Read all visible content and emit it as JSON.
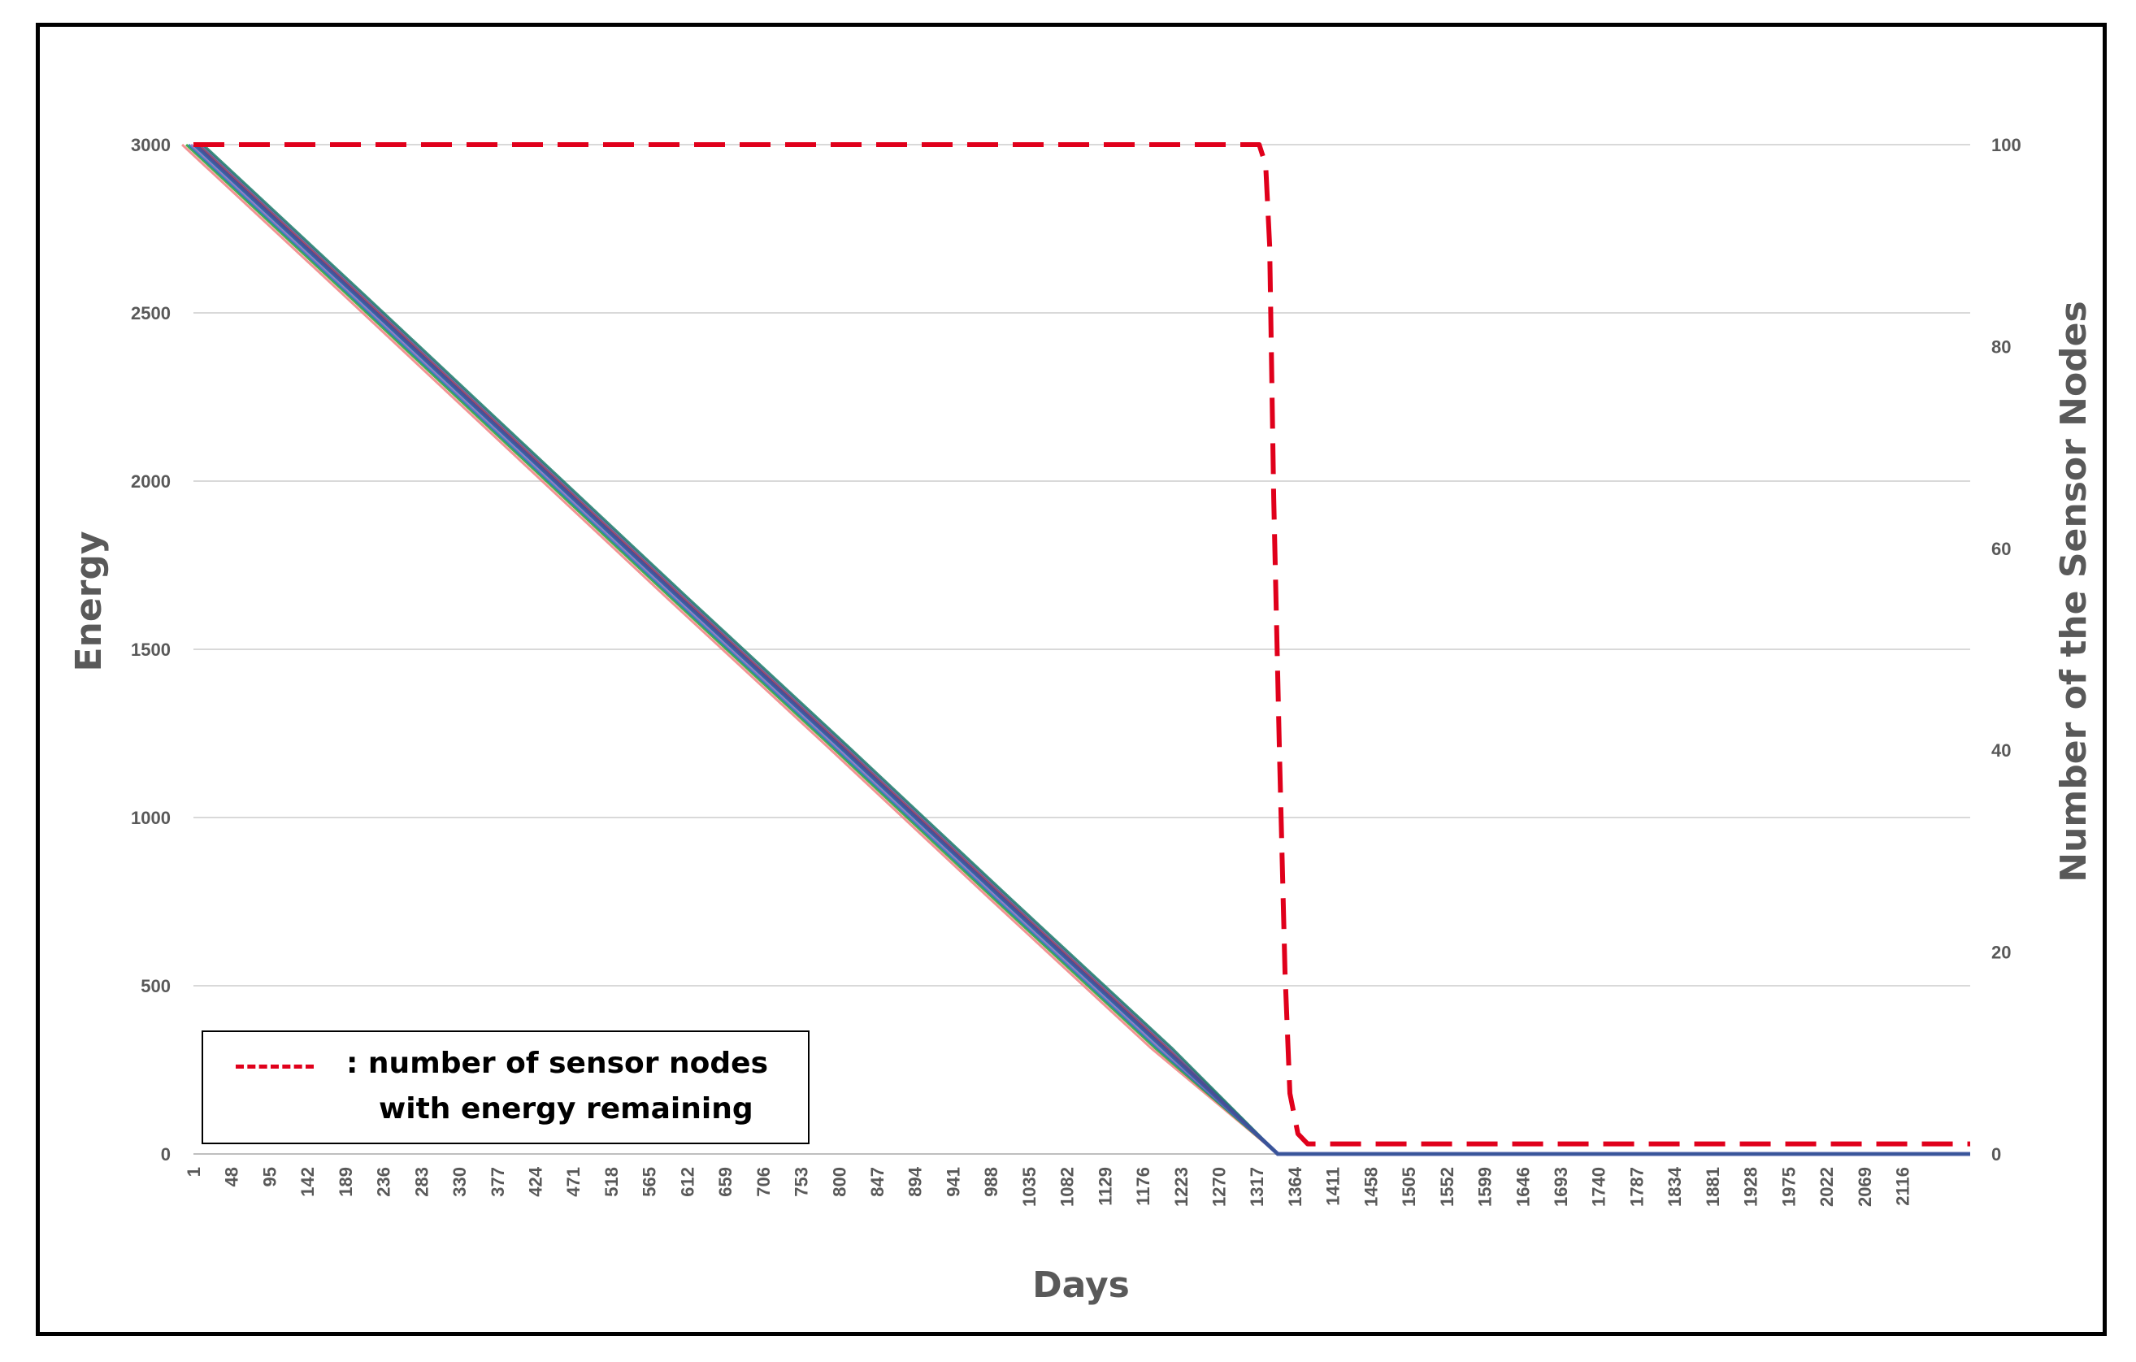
{
  "chart_data": {
    "type": "line",
    "title": "",
    "xlabel": "Days",
    "ylabel": "Energy",
    "y2label": "Number of the Sensor Nodes",
    "x_tick_labels": [
      "1",
      "48",
      "95",
      "142",
      "189",
      "236",
      "283",
      "330",
      "377",
      "424",
      "471",
      "518",
      "565",
      "612",
      "659",
      "706",
      "753",
      "800",
      "847",
      "894",
      "941",
      "988",
      "1035",
      "1082",
      "1129",
      "1176",
      "1223",
      "1270",
      "1317",
      "1364",
      "1411",
      "1458",
      "1505",
      "1552",
      "1599",
      "1646",
      "1693",
      "1740",
      "1787",
      "1834",
      "1881",
      "1928",
      "1975",
      "2022",
      "2069",
      "2116"
    ],
    "xlim": [
      1,
      2200
    ],
    "ylim": [
      0,
      3000
    ],
    "y_ticks": [
      "0",
      "500",
      "1000",
      "1500",
      "2000",
      "2500",
      "3000"
    ],
    "y2lim": [
      0,
      100
    ],
    "y2_ticks": [
      "0",
      "20",
      "40",
      "60",
      "80",
      "100"
    ],
    "grid": true,
    "series": [
      {
        "axis": "left",
        "style": "solid",
        "color": "#3b4fa0",
        "x": [
          1,
          200,
          400,
          600,
          800,
          1000,
          1200,
          1343,
          1380,
          2200
        ],
        "values": [
          3000,
          2555,
          2105,
          1655,
          1210,
          760,
          315,
          0,
          0,
          0
        ]
      },
      {
        "axis": "right",
        "style": "dashed",
        "color": "#e0001b",
        "x": [
          1,
          1320,
          1328,
          1333,
          1338,
          1345,
          1352,
          1358,
          1368,
          1380,
          2200
        ],
        "values": [
          100,
          100,
          98,
          90,
          65,
          40,
          18,
          6,
          2,
          1,
          1
        ]
      }
    ],
    "legend": {
      "position": "bottom-left",
      "line1": ": number of sensor nodes",
      "line2": "with energy remaining"
    }
  }
}
